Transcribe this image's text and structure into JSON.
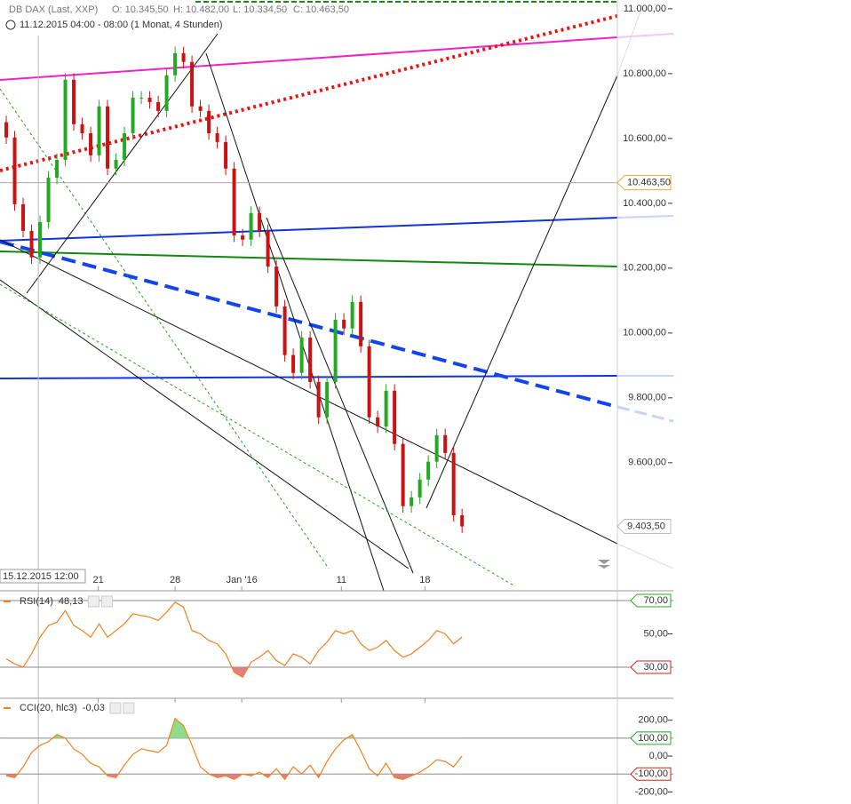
{
  "header": {
    "instrument": "DB DAX (Last, XXP)",
    "ohlc": [
      "O: 10.345,50",
      "H: 10.482,00",
      "L: 10.334,50",
      "C: 10.463,50"
    ],
    "period": "11.12.2015 04:00 - 08:00 (1 Monat, 4 Stunden)"
  },
  "chart_data": {
    "type": "candlestick",
    "xlim": [
      -0.74,
      72.4
    ],
    "xticks": [
      {
        "value": 10.9,
        "label": "21"
      },
      {
        "value": 20.0,
        "label": "28"
      },
      {
        "value": 27.9,
        "label": "Jan '16"
      },
      {
        "value": 39.7,
        "label": "11"
      },
      {
        "value": 49.6,
        "label": "18"
      }
    ],
    "crosshair": {
      "value": 3.8,
      "label": "15.12.2015 12:00"
    },
    "ylim": [
      9205,
      11027
    ],
    "yticks": [
      {
        "value": 11000,
        "label": "11.000,00"
      },
      {
        "value": 10800,
        "label": "10.800,00"
      },
      {
        "value": 10600,
        "label": "10.600,00"
      },
      {
        "value": 10400,
        "label": "10.400,00"
      },
      {
        "value": 10200,
        "label": "10.200,00"
      },
      {
        "value": 10000,
        "label": "10.000,00"
      },
      {
        "value": 9800,
        "label": "9.800,00"
      },
      {
        "value": 9600,
        "label": "9.600,00"
      }
    ],
    "price_marks": [
      {
        "value": 10463.5,
        "label": "10.463,50"
      },
      {
        "value": 9403.5,
        "label": "9.403,50"
      }
    ],
    "up_color": "#22aa22",
    "down_color": "#cc1111",
    "open": [
      10650,
      10603,
      10397,
      10315,
      10233,
      10342,
      10479,
      10534,
      10781,
      10644,
      10616,
      10548,
      10699,
      10507,
      10534,
      10616,
      10726,
      10726,
      10712,
      10685,
      10795,
      10863,
      10836,
      10699,
      10685,
      10616,
      10589,
      10507,
      10301,
      10288,
      10370,
      10315,
      10205,
      10082,
      9932,
      9877,
      9986,
      9849,
      9740,
      9849,
      10041,
      10014,
      10096,
      9959,
      9740,
      9712,
      9822,
      9658,
      9466,
      9493,
      9548,
      9603,
      9685,
      9630,
      9438
    ],
    "high": [
      10670,
      10623,
      10417,
      10335,
      10362,
      10499,
      10554,
      10801,
      10801,
      10664,
      10636,
      10719,
      10719,
      10554,
      10636,
      10746,
      10746,
      10746,
      10732,
      10815,
      10883,
      10883,
      10856,
      10719,
      10705,
      10636,
      10609,
      10527,
      10321,
      10390,
      10390,
      10335,
      10225,
      10102,
      9952,
      10006,
      10006,
      9869,
      9869,
      10061,
      10061,
      10116,
      10116,
      9979,
      9760,
      9842,
      9842,
      9678,
      9513,
      9568,
      9623,
      9705,
      9705,
      9650,
      9458
    ],
    "low": [
      10583,
      10377,
      10295,
      10213,
      10213,
      10322,
      10459,
      10514,
      10624,
      10596,
      10528,
      10528,
      10487,
      10487,
      10514,
      10596,
      10706,
      10692,
      10665,
      10665,
      10775,
      10816,
      10679,
      10665,
      10596,
      10569,
      10487,
      10281,
      10268,
      10268,
      10295,
      10185,
      10062,
      9912,
      9857,
      9857,
      9829,
      9720,
      9720,
      9829,
      9994,
      9994,
      9939,
      9720,
      9692,
      9692,
      9638,
      9446,
      9446,
      9473,
      9528,
      9583,
      9610,
      9418,
      9383.5
    ],
    "close": [
      10603,
      10397,
      10315,
      10233,
      10342,
      10479,
      10534,
      10781,
      10644,
      10616,
      10548,
      10699,
      10507,
      10534,
      10616,
      10726,
      10726,
      10712,
      10685,
      10795,
      10863,
      10836,
      10699,
      10685,
      10616,
      10589,
      10507,
      10301,
      10288,
      10370,
      10315,
      10205,
      10082,
      9932,
      9877,
      9986,
      9849,
      9740,
      9849,
      10041,
      10014,
      10096,
      9959,
      9740,
      9712,
      9822,
      9658,
      9466,
      9493,
      9548,
      9603,
      9685,
      9630,
      9438,
      9403.5
    ],
    "rsi": {
      "name": "RSI(14)",
      "last_label": "48,13",
      "color": "#f08020",
      "ylim": [
        11.9,
        75.3
      ],
      "overbought": 70,
      "oversold": 30,
      "yticks": [
        {
          "value": 70,
          "label": "70,00"
        },
        {
          "value": 50,
          "label": "50,00"
        },
        {
          "value": 30,
          "label": "30,00"
        }
      ],
      "values": [
        35,
        32,
        30,
        38,
        48,
        55,
        57,
        64,
        55,
        52,
        48,
        56,
        48,
        52,
        56,
        62,
        61,
        60,
        58,
        63,
        69,
        66,
        52,
        50,
        46,
        44,
        38,
        27,
        24,
        33,
        36,
        40,
        34,
        31,
        38,
        36,
        32,
        40,
        45,
        52,
        50,
        52,
        44,
        40,
        42,
        46,
        40,
        36,
        38,
        42,
        46,
        52,
        50,
        44,
        48.13
      ]
    },
    "cci": {
      "name": "CCI(20, hlc3)",
      "last_label": "-0,03",
      "color": "#f08020",
      "ylim": [
        -267,
        317
      ],
      "overbought": 100,
      "oversold": -100,
      "yticks": [
        {
          "value": 200,
          "label": "200,00"
        },
        {
          "value": 100,
          "label": "100,00"
        },
        {
          "value": 0,
          "label": "0,00"
        },
        {
          "value": -100,
          "label": "-100,00"
        },
        {
          "value": -200,
          "label": "-200,00"
        }
      ],
      "values": [
        -110,
        -120,
        -60,
        20,
        60,
        80,
        120,
        100,
        40,
        10,
        -40,
        -60,
        -110,
        -120,
        -50,
        10,
        40,
        30,
        20,
        60,
        210,
        170,
        60,
        -60,
        -100,
        -120,
        -110,
        -130,
        -100,
        -110,
        -90,
        -120,
        -70,
        -130,
        -60,
        -100,
        -50,
        -120,
        -30,
        40,
        90,
        120,
        30,
        -70,
        -110,
        -40,
        -120,
        -130,
        -110,
        -90,
        -60,
        -20,
        -30,
        -60,
        -0.03
      ]
    }
  }
}
